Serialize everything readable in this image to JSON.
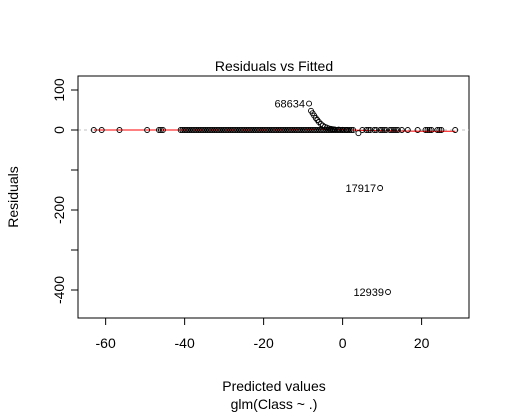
{
  "chart_data": {
    "type": "scatter",
    "title": "Residuals vs Fitted",
    "xlabel": "Predicted values",
    "sublabel": "glm(Class ~ .)",
    "ylabel": "Residuals",
    "xlim": [
      -67,
      32
    ],
    "ylim": [
      -470,
      135
    ],
    "x_ticks": [
      -60,
      -40,
      -20,
      0,
      20
    ],
    "x_tick_labels": [
      "-60",
      "-40",
      "-20",
      "0",
      "20"
    ],
    "y_ticks": [
      -400,
      -300,
      -200,
      -100,
      0,
      100
    ],
    "y_tick_labels": [
      "-400",
      "",
      "-200",
      "",
      "0",
      "100"
    ],
    "reference_line": {
      "y": 0,
      "color": "#c0c0c0"
    },
    "smooth_line_color": "#ff0000",
    "point_color": "#000000",
    "grid": false,
    "points": [
      {
        "x": -63,
        "y": 0
      },
      {
        "x": -61,
        "y": 0
      },
      {
        "x": -56.5,
        "y": 0
      },
      {
        "x": -49.5,
        "y": 0
      },
      {
        "x": -46.5,
        "y": 0
      },
      {
        "x": -46,
        "y": 0
      },
      {
        "x": -45.5,
        "y": 0
      },
      {
        "x": -8.5,
        "y": 66
      },
      {
        "x": -8.0,
        "y": 48
      },
      {
        "x": -7.6,
        "y": 42
      },
      {
        "x": -7.2,
        "y": 36
      },
      {
        "x": -6.8,
        "y": 30
      },
      {
        "x": -6.4,
        "y": 25
      },
      {
        "x": -6.0,
        "y": 20
      },
      {
        "x": -5.5,
        "y": 15
      },
      {
        "x": -5.0,
        "y": 11
      },
      {
        "x": -4.5,
        "y": 8
      },
      {
        "x": -4.0,
        "y": 6
      },
      {
        "x": -3.5,
        "y": 4
      },
      {
        "x": -3.0,
        "y": 3
      },
      {
        "x": -2.5,
        "y": 2
      },
      {
        "x": -2.0,
        "y": 1.5
      },
      {
        "x": -1.0,
        "y": 1
      },
      {
        "x": 0.0,
        "y": 0.5
      },
      {
        "x": 1.0,
        "y": 0.2
      },
      {
        "x": 4.0,
        "y": -8
      },
      {
        "x": 5.0,
        "y": 0
      },
      {
        "x": 6.0,
        "y": 0
      },
      {
        "x": 6.5,
        "y": 0
      },
      {
        "x": 7.0,
        "y": 0
      },
      {
        "x": 8.0,
        "y": 0
      },
      {
        "x": 8.5,
        "y": 0
      },
      {
        "x": 9.5,
        "y": 0
      },
      {
        "x": 10.0,
        "y": 0
      },
      {
        "x": 10.5,
        "y": 0
      },
      {
        "x": 11.0,
        "y": 0
      },
      {
        "x": 12.0,
        "y": 0
      },
      {
        "x": 12.5,
        "y": 0
      },
      {
        "x": 13.0,
        "y": 0
      },
      {
        "x": 13.5,
        "y": 0
      },
      {
        "x": 14.0,
        "y": 0
      },
      {
        "x": 15.0,
        "y": 0
      },
      {
        "x": 16.5,
        "y": 0
      },
      {
        "x": 19.0,
        "y": 0
      },
      {
        "x": 21.0,
        "y": 0
      },
      {
        "x": 21.5,
        "y": 0
      },
      {
        "x": 22.0,
        "y": 0
      },
      {
        "x": 22.5,
        "y": 0
      },
      {
        "x": 24.0,
        "y": 0
      },
      {
        "x": 24.5,
        "y": 0
      },
      {
        "x": 25.0,
        "y": 0
      },
      {
        "x": 28.5,
        "y": 0
      },
      {
        "x": 9.5,
        "y": -145
      },
      {
        "x": 11.5,
        "y": -405
      }
    ],
    "dense_band": {
      "x_from": -41,
      "x_to": 3,
      "y": 0
    },
    "smooth_line": [
      {
        "x": -63,
        "y": 0
      },
      {
        "x": -20,
        "y": 0
      },
      {
        "x": -8.5,
        "y": 1
      },
      {
        "x": -4,
        "y": 2
      },
      {
        "x": 0,
        "y": 1
      },
      {
        "x": 5,
        "y": -1
      },
      {
        "x": 10,
        "y": -2
      },
      {
        "x": 20,
        "y": -3
      },
      {
        "x": 28.5,
        "y": -3
      }
    ],
    "annotations": [
      {
        "text": "68634",
        "x": -8.5,
        "y": 66
      },
      {
        "text": "17917",
        "x": 9.5,
        "y": -145
      },
      {
        "text": "12939",
        "x": 11.5,
        "y": -405
      }
    ]
  }
}
